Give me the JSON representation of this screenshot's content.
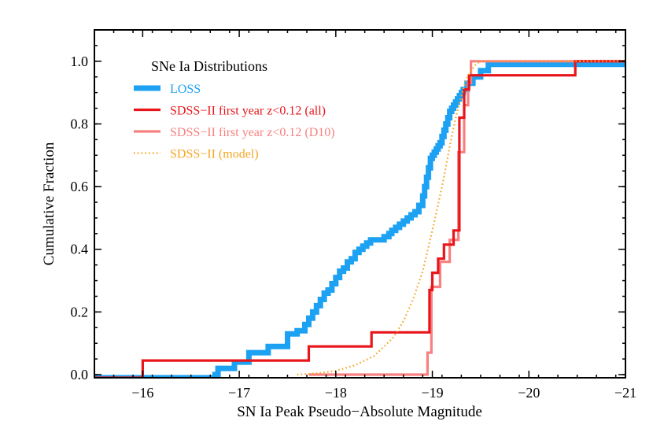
{
  "chart_data": {
    "type": "line",
    "title": "",
    "xlabel": "SN Ia Peak Pseudo−Absolute Magnitude",
    "ylabel": "Cumulative Fraction",
    "xlim": [
      -15.5,
      -21.0
    ],
    "ylim": [
      -0.01,
      1.1
    ],
    "x_ticks": [
      {
        "value": -16,
        "label": "−16"
      },
      {
        "value": -17,
        "label": "−17"
      },
      {
        "value": -18,
        "label": "−18"
      },
      {
        "value": -19,
        "label": "−19"
      },
      {
        "value": -20,
        "label": "−20"
      },
      {
        "value": -21,
        "label": "−21"
      }
    ],
    "x_minor_step": 0.2,
    "y_ticks": [
      {
        "value": 0.0,
        "label": "0.0"
      },
      {
        "value": 0.2,
        "label": "0.2"
      },
      {
        "value": 0.4,
        "label": "0.4"
      },
      {
        "value": 0.6,
        "label": "0.6"
      },
      {
        "value": 0.8,
        "label": "0.8"
      },
      {
        "value": 1.0,
        "label": "1.0"
      }
    ],
    "y_minor_step": 0.05,
    "legend": {
      "title": "SNe Ia Distributions",
      "placement": "top-left",
      "entries": [
        {
          "label": "LOSS",
          "color": "#1da1f2",
          "style": "thick-solid"
        },
        {
          "label": "SDSS−II first year z<0.12 (all)",
          "color": "#e8151b",
          "style": "solid"
        },
        {
          "label": "SDSS−II first year z<0.12 (D10)",
          "color": "#f88080",
          "style": "solid"
        },
        {
          "label": "SDSS−II (model)",
          "color": "#f5a623",
          "style": "dotted"
        }
      ]
    },
    "series": [
      {
        "name": "LOSS",
        "color": "#1da1f2",
        "style": "thick-solid",
        "x": [
          -15.5,
          -16.75,
          -16.78,
          -16.95,
          -17.1,
          -17.3,
          -17.5,
          -17.6,
          -17.68,
          -17.72,
          -17.76,
          -17.8,
          -17.84,
          -17.88,
          -17.92,
          -17.96,
          -18.0,
          -18.04,
          -18.08,
          -18.12,
          -18.16,
          -18.2,
          -18.24,
          -18.28,
          -18.32,
          -18.36,
          -18.4,
          -18.5,
          -18.55,
          -18.58,
          -18.62,
          -18.66,
          -18.7,
          -18.74,
          -18.78,
          -18.82,
          -18.86,
          -18.9,
          -18.92,
          -18.94,
          -18.96,
          -18.98,
          -19.0,
          -19.02,
          -19.04,
          -19.06,
          -19.08,
          -19.1,
          -19.12,
          -19.14,
          -19.16,
          -19.18,
          -19.2,
          -19.22,
          -19.24,
          -19.26,
          -19.28,
          -19.3,
          -19.32,
          -19.36,
          -19.42,
          -19.5,
          -19.58,
          -21.0
        ],
        "y": [
          -0.01,
          0.0,
          0.02,
          0.04,
          0.07,
          0.09,
          0.13,
          0.14,
          0.16,
          0.18,
          0.2,
          0.22,
          0.24,
          0.26,
          0.27,
          0.29,
          0.31,
          0.33,
          0.34,
          0.36,
          0.37,
          0.39,
          0.4,
          0.41,
          0.42,
          0.43,
          0.43,
          0.44,
          0.45,
          0.46,
          0.47,
          0.48,
          0.49,
          0.5,
          0.51,
          0.52,
          0.54,
          0.57,
          0.6,
          0.63,
          0.66,
          0.69,
          0.7,
          0.71,
          0.72,
          0.73,
          0.74,
          0.76,
          0.78,
          0.8,
          0.82,
          0.84,
          0.85,
          0.86,
          0.87,
          0.88,
          0.89,
          0.9,
          0.91,
          0.93,
          0.95,
          0.97,
          0.99,
          1.0
        ]
      },
      {
        "name": "SDSS−II first year z<0.12 (all)",
        "color": "#e8151b",
        "style": "solid",
        "x": [
          -15.5,
          -16.0,
          -17.72,
          -18.37,
          -18.97,
          -19.0,
          -19.06,
          -19.12,
          -19.22,
          -19.28,
          -19.33,
          -19.38,
          -19.42,
          -20.48,
          -21.0
        ],
        "y": [
          -0.01,
          0.045,
          0.09,
          0.135,
          0.27,
          0.325,
          0.37,
          0.415,
          0.46,
          0.82,
          0.91,
          0.955,
          0.955,
          1.0,
          1.0
        ]
      },
      {
        "name": "SDSS−II first year z<0.12 (D10)",
        "color": "#f88080",
        "style": "solid",
        "x": [
          -17.72,
          -18.95,
          -18.99,
          -19.08,
          -19.18,
          -19.27,
          -19.33,
          -19.37,
          -19.4,
          -21.0
        ],
        "y": [
          0.0,
          0.07,
          0.28,
          0.36,
          0.43,
          0.71,
          0.86,
          0.93,
          1.0,
          1.0
        ]
      },
      {
        "name": "SDSS−II (model)",
        "color": "#f5a623",
        "style": "dotted",
        "type": "curve",
        "x": [
          -17.6,
          -17.8,
          -18.0,
          -18.2,
          -18.4,
          -18.6,
          -18.7,
          -18.8,
          -18.9,
          -19.0,
          -19.05,
          -19.1,
          -19.15,
          -19.2,
          -19.25,
          -19.3,
          -19.35,
          -19.4,
          -19.45,
          -19.5,
          -19.6,
          -21.0
        ],
        "y": [
          0.0,
          0.004,
          0.012,
          0.03,
          0.06,
          0.12,
          0.17,
          0.24,
          0.33,
          0.46,
          0.53,
          0.6,
          0.68,
          0.76,
          0.83,
          0.89,
          0.94,
          0.97,
          0.99,
          1.0,
          1.0,
          1.0
        ]
      }
    ]
  }
}
